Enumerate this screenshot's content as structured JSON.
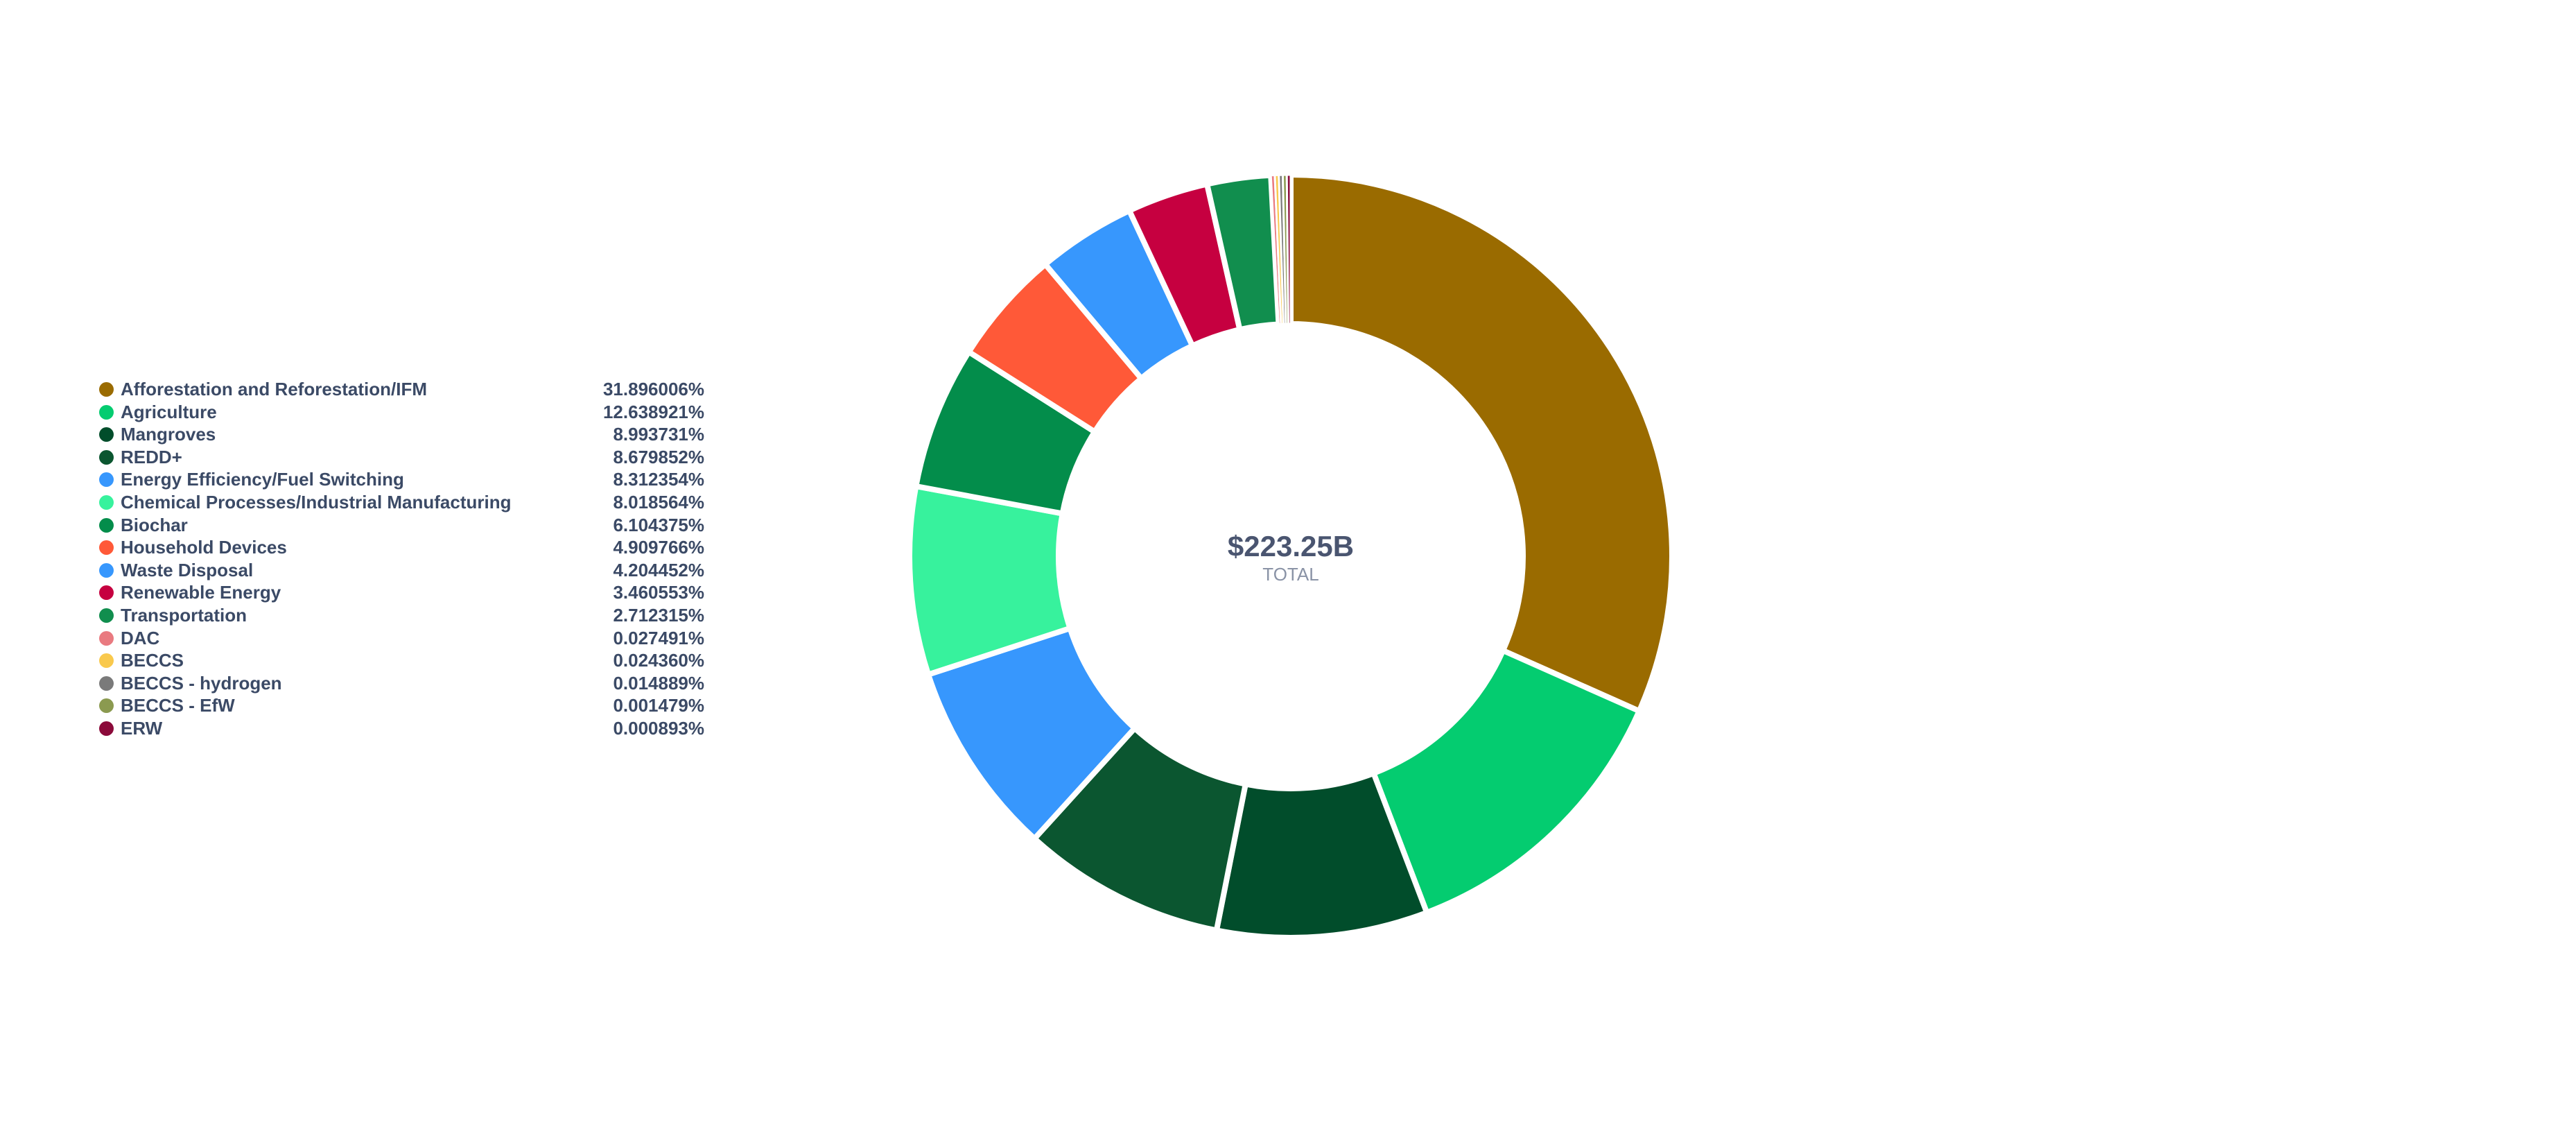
{
  "chart_data": {
    "type": "pie",
    "variant": "donut",
    "center": {
      "value": "$223.25B",
      "label": "TOTAL"
    },
    "legend_position": "left",
    "slices": [
      {
        "label": "Afforestation and Reforestation/IFM",
        "value": 31.896006,
        "display": "31.896006%",
        "color": "#9a6b00"
      },
      {
        "label": "Agriculture",
        "value": 12.638921,
        "display": "12.638921%",
        "color": "#04cc70"
      },
      {
        "label": "Mangroves",
        "value": 8.993731,
        "display": "8.993731%",
        "color": "#014d2b"
      },
      {
        "label": "REDD+",
        "value": 8.679852,
        "display": "8.679852%",
        "color": "#0b5630"
      },
      {
        "label": "Energy Efficiency/Fuel Switching",
        "value": 8.312354,
        "display": "8.312354%",
        "color": "#3797fd"
      },
      {
        "label": "Chemical Processes/Industrial Manufacturing",
        "value": 8.018564,
        "display": "8.018564%",
        "color": "#37f29d"
      },
      {
        "label": "Biochar",
        "value": 6.104375,
        "display": "6.104375%",
        "color": "#038d4b"
      },
      {
        "label": "Household Devices",
        "value": 4.909766,
        "display": "4.909766%",
        "color": "#ff5938"
      },
      {
        "label": "Waste Disposal",
        "value": 4.204452,
        "display": "4.204452%",
        "color": "#3797fd"
      },
      {
        "label": "Renewable Energy",
        "value": 3.460553,
        "display": "3.460553%",
        "color": "#c60040"
      },
      {
        "label": "Transportation",
        "value": 2.712315,
        "display": "2.712315%",
        "color": "#118e4e"
      },
      {
        "label": "DAC",
        "value": 0.027491,
        "display": "0.027491%",
        "color": "#e97a80"
      },
      {
        "label": "BECCS",
        "value": 0.02436,
        "display": "0.024360%",
        "color": "#f9c94d"
      },
      {
        "label": "BECCS - hydrogen",
        "value": 0.014889,
        "display": "0.014889%",
        "color": "#7a7a7a"
      },
      {
        "label": "BECCS - EfW",
        "value": 0.001479,
        "display": "0.001479%",
        "color": "#8b9a50"
      },
      {
        "label": "ERW",
        "value": 0.000893,
        "display": "0.000893%",
        "color": "#8b0a3a"
      }
    ]
  }
}
